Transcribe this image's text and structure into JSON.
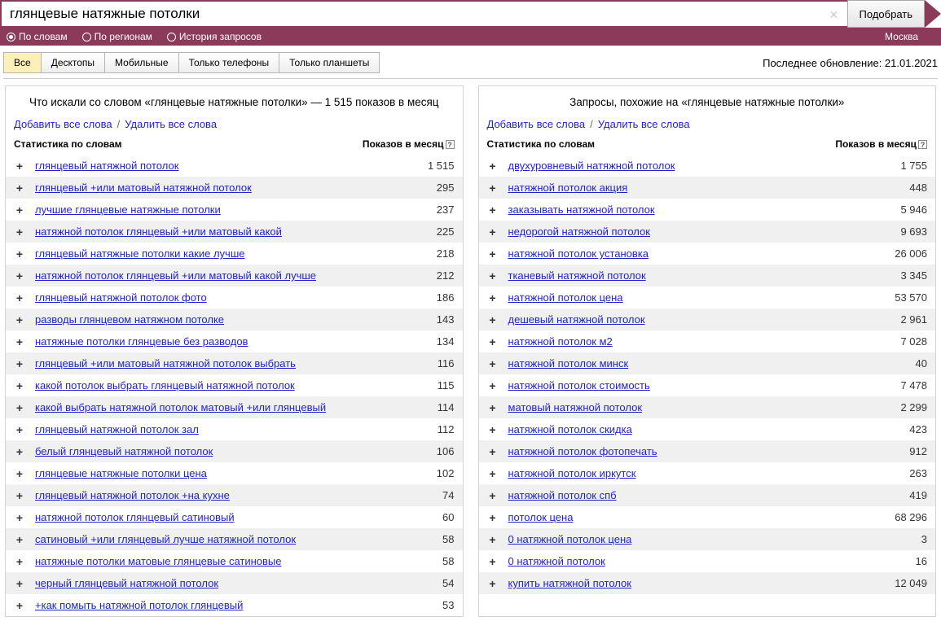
{
  "search": {
    "query": "глянцевые натяжные потолки",
    "submit_label": "Подобрать"
  },
  "filters": {
    "by_words": "По словам",
    "by_regions": "По регионам",
    "history": "История запросов",
    "region": "Москва"
  },
  "tabs": {
    "all": "Все",
    "desktops": "Десктопы",
    "mobile": "Мобильные",
    "phones_only": "Только телефоны",
    "tablets_only": "Только планшеты"
  },
  "last_update": "Последнее обновление: 21.01.2021",
  "actions": {
    "add_all": "Добавить все слова",
    "remove_all": "Удалить все слова"
  },
  "headers": {
    "stats": "Статистика по словам",
    "shows": "Показов в месяц"
  },
  "left": {
    "title": "Что искали со словом «глянцевые натяжные потолки» — 1 515 показов в месяц",
    "rows": [
      {
        "kw": "глянцевый натяжной потолок",
        "cnt": "1 515"
      },
      {
        "kw": "глянцевый +или матовый натяжной потолок",
        "cnt": "295"
      },
      {
        "kw": "лучшие глянцевые натяжные потолки",
        "cnt": "237"
      },
      {
        "kw": "натяжной потолок глянцевый +или матовый какой",
        "cnt": "225"
      },
      {
        "kw": "глянцевый натяжные потолки какие лучше",
        "cnt": "218"
      },
      {
        "kw": "натяжной потолок глянцевый +или матовый какой лучше",
        "cnt": "212"
      },
      {
        "kw": "глянцевый натяжной потолок фото",
        "cnt": "186"
      },
      {
        "kw": "разводы глянцевом натяжном потолке",
        "cnt": "143"
      },
      {
        "kw": "натяжные потолки глянцевые без разводов",
        "cnt": "134"
      },
      {
        "kw": "глянцевый +или матовый натяжной потолок выбрать",
        "cnt": "116"
      },
      {
        "kw": "какой потолок выбрать глянцевый натяжной потолок",
        "cnt": "115"
      },
      {
        "kw": "какой выбрать натяжной потолок матовый +или глянцевый",
        "cnt": "114"
      },
      {
        "kw": "глянцевый натяжной потолок зал",
        "cnt": "112"
      },
      {
        "kw": "белый глянцевый натяжной потолок",
        "cnt": "106"
      },
      {
        "kw": "глянцевые натяжные потолки цена",
        "cnt": "102"
      },
      {
        "kw": "глянцевый натяжной потолок +на кухне",
        "cnt": "74"
      },
      {
        "kw": "натяжной потолок глянцевый сатиновый",
        "cnt": "60"
      },
      {
        "kw": "сатиновый +или глянцевый лучше натяжной потолок",
        "cnt": "58"
      },
      {
        "kw": "натяжные потолки матовые глянцевые сатиновые",
        "cnt": "58"
      },
      {
        "kw": "черный глянцевый натяжной потолок",
        "cnt": "54"
      },
      {
        "kw": "+как помыть натяжной потолок глянцевый",
        "cnt": "53"
      }
    ]
  },
  "right": {
    "title": "Запросы, похожие на «глянцевые натяжные потолки»",
    "rows": [
      {
        "kw": "двухуровневый натяжной потолок",
        "cnt": "1 755"
      },
      {
        "kw": "натяжной потолок акция",
        "cnt": "448"
      },
      {
        "kw": "заказывать натяжной потолок",
        "cnt": "5 946"
      },
      {
        "kw": "недорогой натяжной потолок",
        "cnt": "9 693"
      },
      {
        "kw": "натяжной потолок установка",
        "cnt": "26 006"
      },
      {
        "kw": "тканевый натяжной потолок",
        "cnt": "3 345"
      },
      {
        "kw": "натяжной потолок цена",
        "cnt": "53 570"
      },
      {
        "kw": "дешевый натяжной потолок",
        "cnt": "2 961"
      },
      {
        "kw": "натяжной потолок м2",
        "cnt": "7 028"
      },
      {
        "kw": "натяжной потолок минск",
        "cnt": "40"
      },
      {
        "kw": "натяжной потолок стоимость",
        "cnt": "7 478"
      },
      {
        "kw": "матовый натяжной потолок",
        "cnt": "2 299"
      },
      {
        "kw": "натяжной потолок скидка",
        "cnt": "423"
      },
      {
        "kw": "натяжной потолок фотопечать",
        "cnt": "912"
      },
      {
        "kw": "натяжной потолок иркутск",
        "cnt": "263"
      },
      {
        "kw": "натяжной потолок спб",
        "cnt": "419"
      },
      {
        "kw": "потолок цена",
        "cnt": "68 296"
      },
      {
        "kw": "0 натяжной потолок цена",
        "cnt": "3"
      },
      {
        "kw": "0 натяжной потолок",
        "cnt": "16"
      },
      {
        "kw": "купить натяжной потолок",
        "cnt": "12 049"
      }
    ]
  }
}
